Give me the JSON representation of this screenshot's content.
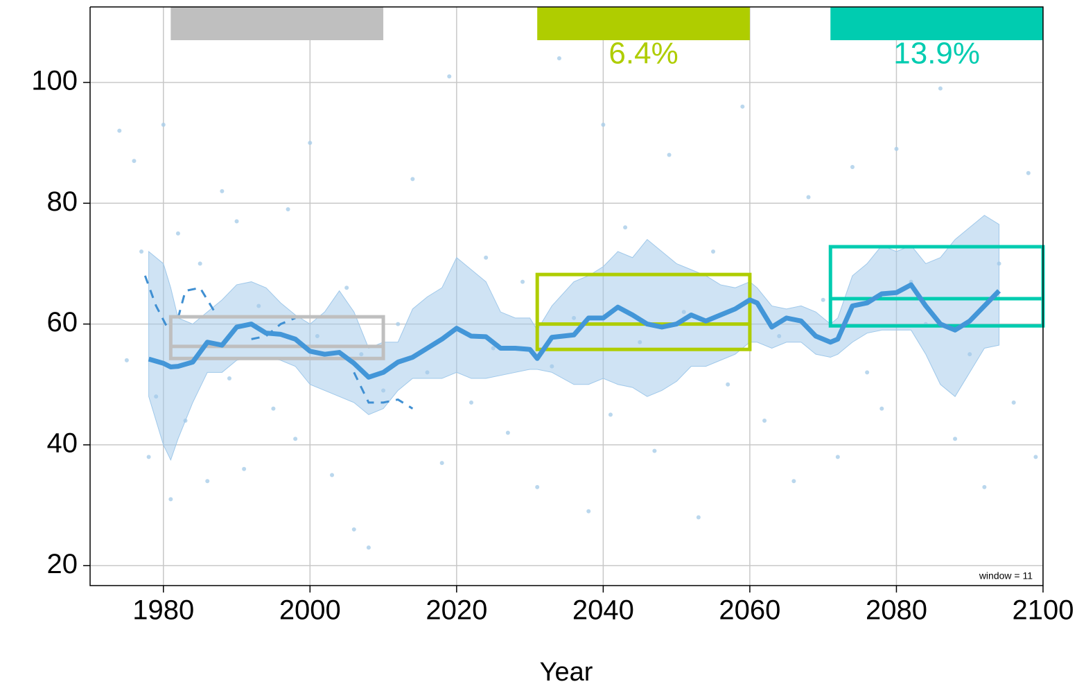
{
  "chart_data": {
    "type": "line",
    "x_label": "Year",
    "annotation": "window = 11",
    "xlim": [
      1970,
      2100
    ],
    "ylim": [
      16.7,
      112.5
    ],
    "xticks": [
      1980,
      2000,
      2020,
      2040,
      2060,
      2080,
      2100
    ],
    "yticks": [
      20,
      40,
      60,
      80,
      100
    ],
    "grid": true,
    "points": {
      "color": "#a9cde8",
      "x": [
        1974,
        1975,
        1976,
        1977,
        1978,
        1979,
        1980,
        1981,
        1982,
        1983,
        1985,
        1986,
        1988,
        1989,
        1990,
        1991,
        1993,
        1995,
        1997,
        1998,
        2000,
        2001,
        2003,
        2005,
        2006,
        2007,
        2008,
        2010,
        2012,
        2014,
        2016,
        2018,
        2019,
        2022,
        2024,
        2025,
        2027,
        2029,
        2031,
        2033,
        2034,
        2036,
        2038,
        2040,
        2041,
        2043,
        2045,
        2047,
        2049,
        2051,
        2053,
        2055,
        2057,
        2059,
        2062,
        2064,
        2066,
        2068,
        2070,
        2072,
        2074,
        2076,
        2078,
        2080,
        2082,
        2084,
        2086,
        2088,
        2090,
        2092,
        2094,
        2096,
        2098,
        2099
      ],
      "values": [
        92,
        54,
        87,
        72,
        38,
        48,
        93,
        31,
        75,
        44,
        70,
        34,
        82,
        51,
        77,
        36,
        63,
        46,
        79,
        41,
        90,
        58,
        35,
        66,
        26,
        55,
        23,
        49,
        60,
        84,
        52,
        37,
        101,
        47,
        71,
        56,
        42,
        67,
        33,
        53,
        104,
        61,
        29,
        93,
        45,
        76,
        57,
        39,
        88,
        62,
        28,
        72,
        50,
        96,
        44,
        58,
        34,
        81,
        64,
        38,
        86,
        52,
        46,
        89,
        67,
        60,
        99,
        41,
        55,
        33,
        70,
        47,
        85,
        38
      ]
    },
    "band": {
      "color": "#9fc8ea",
      "x": [
        1978,
        1980,
        1981,
        1982,
        1984,
        1986,
        1988,
        1990,
        1992,
        1994,
        1996,
        1998,
        2000,
        2002,
        2004,
        2006,
        2008,
        2010,
        2012,
        2014,
        2016,
        2018,
        2020,
        2022,
        2024,
        2026,
        2028,
        2030,
        2031,
        2033,
        2036,
        2038,
        2040,
        2042,
        2044,
        2046,
        2048,
        2050,
        2052,
        2054,
        2056,
        2058,
        2060,
        2061,
        2063,
        2065,
        2067,
        2069,
        2071,
        2072,
        2074,
        2076,
        2078,
        2080,
        2082,
        2084,
        2086,
        2088,
        2090,
        2092,
        2094
      ],
      "upper": [
        72,
        70,
        66,
        61,
        60,
        62,
        64,
        66.5,
        67,
        66,
        63.5,
        61.5,
        60,
        62,
        65.5,
        62,
        56,
        57,
        57,
        62.5,
        64.5,
        66,
        71,
        69,
        67,
        62,
        61,
        61,
        59,
        63,
        67,
        68,
        69.5,
        72,
        71,
        74,
        72,
        70,
        69,
        68,
        66.5,
        66,
        67,
        66,
        63,
        62.5,
        63,
        62,
        60,
        61,
        68,
        70,
        73,
        72,
        73,
        70,
        71,
        74,
        76,
        78,
        76.5
      ],
      "lower": [
        48,
        40,
        37.5,
        41,
        47,
        52,
        52,
        54,
        54.5,
        54.5,
        54,
        53,
        50,
        49,
        48,
        47,
        45,
        46,
        49,
        51,
        51,
        51,
        52,
        51,
        51,
        51.5,
        52,
        52.5,
        52.5,
        52,
        50,
        50,
        51,
        50,
        49.5,
        48,
        49,
        50.5,
        53,
        53,
        54,
        55,
        57,
        57,
        56,
        57,
        57,
        55,
        54.5,
        55,
        57,
        58.5,
        59,
        59,
        59,
        55,
        50,
        48,
        52,
        56,
        56.5
      ]
    },
    "dashed": {
      "color": "#3f8fd2",
      "x": [
        1977.5,
        1979,
        1980.5,
        1981.5,
        1982,
        1983,
        1985,
        1987,
        1989,
        1992,
        1994,
        1996,
        1998,
        2004,
        2006,
        2008,
        2010,
        2012,
        2014
      ],
      "values": [
        68,
        63,
        59.5,
        null,
        61,
        65.5,
        66,
        62,
        null,
        57.5,
        58,
        60,
        61,
        null,
        52,
        47,
        47,
        47.5,
        46
      ]
    },
    "mean": {
      "color": "#4396d8",
      "x": [
        1978,
        1980,
        1981,
        1982,
        1984,
        1986,
        1988,
        1990,
        1992,
        1994,
        1996,
        1998,
        2000,
        2002,
        2004,
        2006,
        2008,
        2010,
        2012,
        2014,
        2016,
        2018,
        2020,
        2022,
        2024,
        2026,
        2028,
        2030,
        2031,
        2033,
        2036,
        2038,
        2040,
        2042,
        2044,
        2046,
        2048,
        2050,
        2052,
        2054,
        2056,
        2058,
        2060,
        2061,
        2063,
        2065,
        2067,
        2069,
        2071,
        2072,
        2074,
        2076,
        2078,
        2080,
        2082,
        2084,
        2086,
        2088,
        2090,
        2092,
        2094
      ],
      "values": [
        54.2,
        53.5,
        52.9,
        53,
        53.7,
        57,
        56.5,
        59.5,
        60,
        58.5,
        58.3,
        57.5,
        55.5,
        55,
        55.3,
        53.5,
        51.2,
        52,
        53.7,
        54.5,
        56,
        57.5,
        59.3,
        58,
        57.9,
        56,
        56,
        55.8,
        54.3,
        57.8,
        58.2,
        61,
        61,
        62.8,
        61.5,
        60,
        59.5,
        60,
        61.5,
        60.5,
        61.5,
        62.5,
        64,
        63.5,
        59.5,
        61,
        60.5,
        58,
        57,
        57.5,
        63,
        63.5,
        65,
        65.2,
        66.5,
        63,
        60,
        59,
        60.5,
        63,
        65.5
      ]
    },
    "windows": [
      {
        "x": [
          1981,
          2010
        ],
        "mean": 56.3,
        "low": 54.3,
        "high": 61.2,
        "color": "#bfbfbf"
      },
      {
        "x": [
          2031,
          2060
        ],
        "mean": 60.0,
        "low": 55.8,
        "high": 68.2,
        "color": "#afcd00",
        "label": "6.4%"
      },
      {
        "x": [
          2071,
          2100
        ],
        "mean": 64.2,
        "low": 59.7,
        "high": 72.8,
        "color": "#00ccb0",
        "label": "13.9%"
      }
    ]
  }
}
